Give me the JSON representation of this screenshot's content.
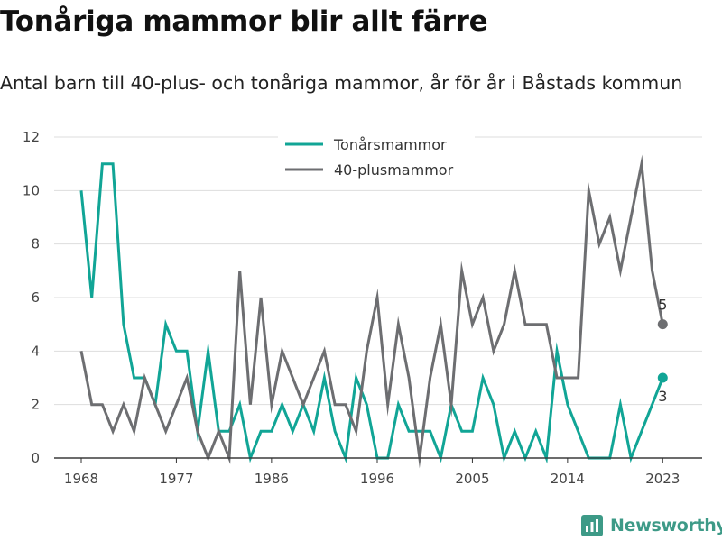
{
  "title": "Tonåriga mammor blir allt färre",
  "subtitle": "Antal barn till 40-plus- och tonåriga mammor, år för år i Båstads kommun",
  "brand": "Newsworthy",
  "colors": {
    "teens": "#11a596",
    "forty_plus": "#6d6e71",
    "grid": "#dddddd",
    "brand": "#3d9a87"
  },
  "chart_data": {
    "type": "line",
    "x_ticks": [
      1968,
      1977,
      1986,
      1996,
      2005,
      2014,
      2023
    ],
    "y_ticks": [
      0,
      2,
      4,
      6,
      8,
      10,
      12
    ],
    "xlim": [
      1968,
      2024
    ],
    "ylim": [
      0,
      12
    ],
    "grid": true,
    "legend_position": "top-center",
    "years": [
      1968,
      1969,
      1970,
      1971,
      1972,
      1973,
      1974,
      1975,
      1976,
      1977,
      1978,
      1979,
      1980,
      1981,
      1982,
      1983,
      1984,
      1985,
      1986,
      1987,
      1988,
      1989,
      1990,
      1991,
      1992,
      1993,
      1994,
      1995,
      1996,
      1997,
      1998,
      1999,
      2000,
      2001,
      2002,
      2003,
      2004,
      2005,
      2006,
      2007,
      2008,
      2009,
      2010,
      2011,
      2012,
      2013,
      2014,
      2015,
      2016,
      2017,
      2018,
      2019,
      2020,
      2021,
      2022,
      2023
    ],
    "series": [
      {
        "name": "Tonårsmammor",
        "color": "#11a596",
        "values": [
          10,
          6,
          11,
          11,
          5,
          3,
          3,
          2,
          5,
          4,
          4,
          1,
          4,
          1,
          1,
          2,
          0,
          1,
          1,
          2,
          1,
          2,
          1,
          3,
          1,
          0,
          3,
          2,
          0,
          0,
          2,
          1,
          1,
          1,
          0,
          2,
          1,
          1,
          3,
          2,
          0,
          1,
          0,
          1,
          0,
          4,
          2,
          1,
          0,
          0,
          0,
          2,
          0,
          1,
          2,
          3
        ],
        "end_label": "3"
      },
      {
        "name": "40-plusmammor",
        "color": "#6d6e71",
        "values": [
          4,
          2,
          2,
          1,
          2,
          1,
          3,
          2,
          1,
          2,
          3,
          1,
          0,
          1,
          0,
          7,
          2,
          6,
          2,
          4,
          3,
          2,
          3,
          4,
          2,
          2,
          1,
          4,
          6,
          2,
          5,
          3,
          0,
          3,
          5,
          2,
          7,
          5,
          6,
          4,
          5,
          7,
          5,
          5,
          5,
          3,
          3,
          3,
          10,
          8,
          9,
          7,
          9,
          11,
          7,
          5
        ],
        "end_label": "5"
      }
    ]
  }
}
